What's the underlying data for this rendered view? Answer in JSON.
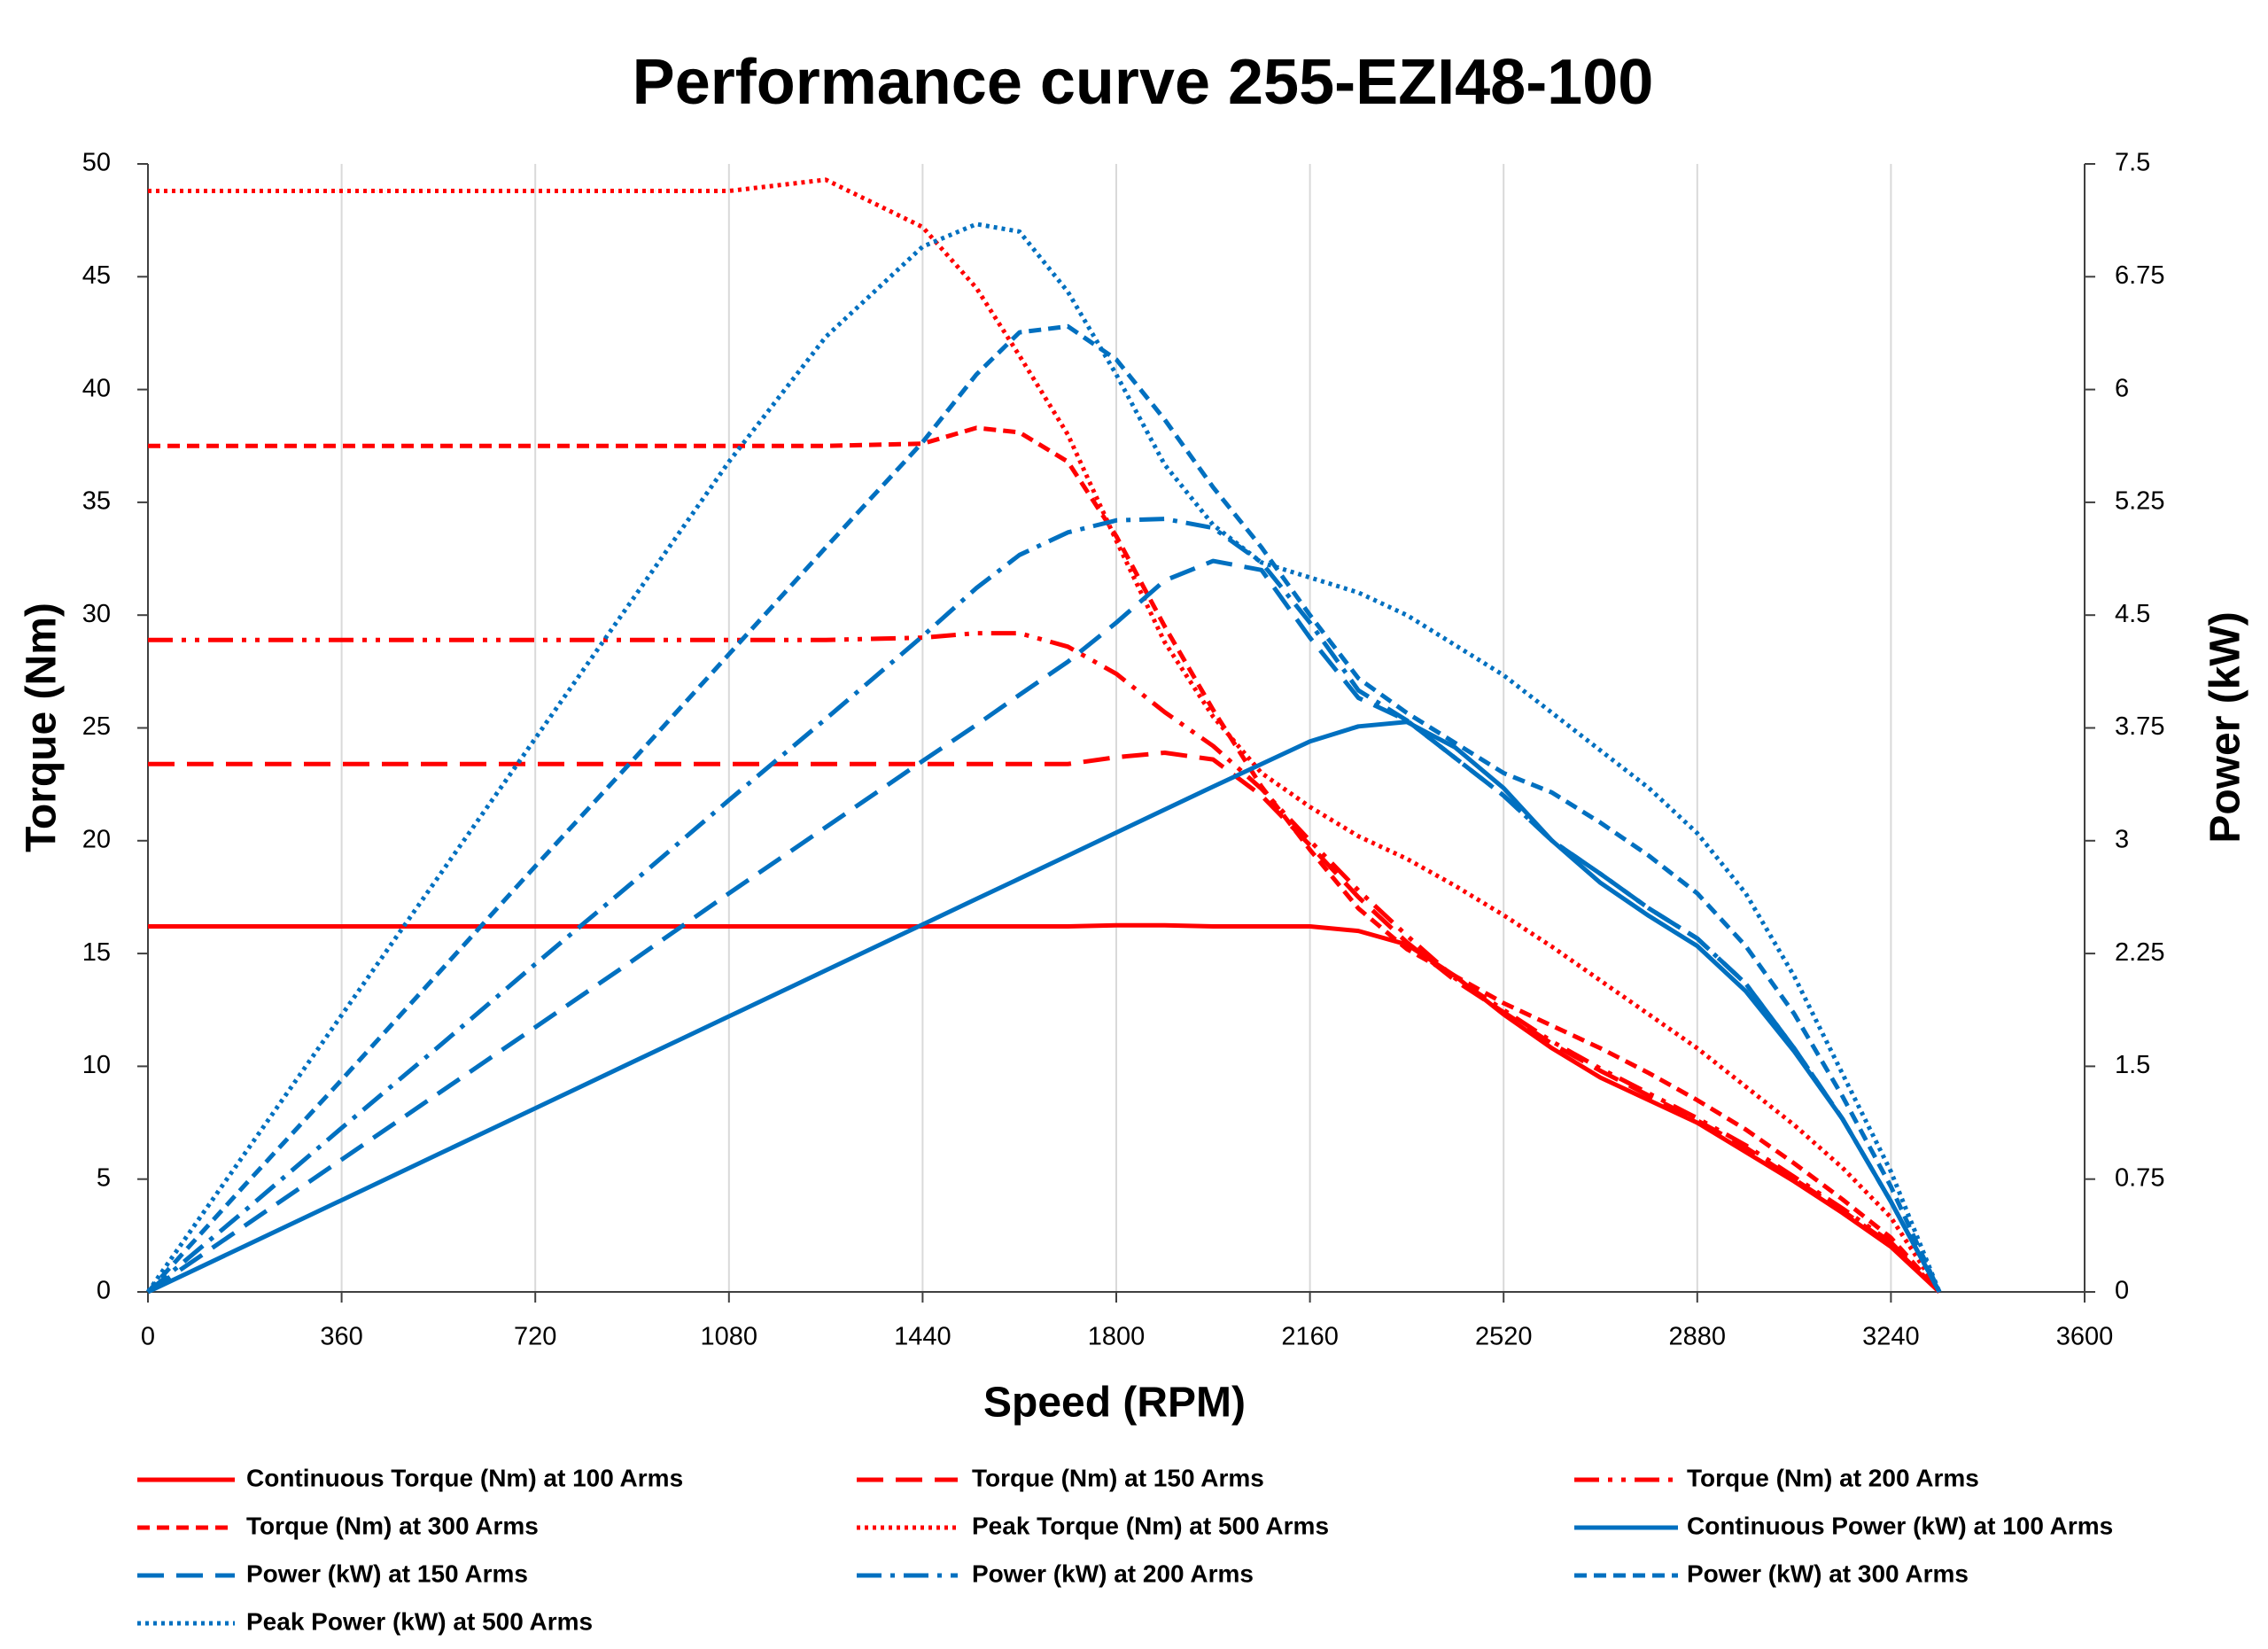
{
  "chart_data": {
    "type": "line",
    "title": "Performance curve 255-EZI48-100",
    "x_label": "Speed (RPM)",
    "y_label": "Torque (Nm)",
    "y2_label": "Power (kW)",
    "xlim": [
      0,
      3600
    ],
    "xticks": [
      0,
      360,
      720,
      1080,
      1440,
      1800,
      2160,
      2520,
      2880,
      3240,
      3600
    ],
    "ylim": [
      0,
      50
    ],
    "yticks": [
      0,
      5,
      10,
      15,
      20,
      25,
      30,
      35,
      40,
      45,
      50
    ],
    "y2lim": [
      0,
      7.5
    ],
    "y2ticks": [
      0,
      0.75,
      1.5,
      2.25,
      3,
      3.75,
      4.5,
      5.25,
      6,
      6.75,
      7.5
    ],
    "grid": "x",
    "legend": "bottom",
    "x": [
      0,
      180,
      360,
      540,
      720,
      900,
      1080,
      1260,
      1440,
      1540,
      1620,
      1710,
      1800,
      1890,
      1980,
      2070,
      2160,
      2250,
      2340,
      2430,
      2520,
      2610,
      2700,
      2790,
      2880,
      2970,
      3060,
      3150,
      3240,
      3330
    ],
    "series": [
      {
        "name": "Continuous Torque (Nm) at 100 Arms",
        "color": "#ff0000",
        "dash": "solid",
        "values": [
          16.2,
          16.2,
          16.2,
          16.2,
          16.2,
          16.2,
          16.2,
          16.2,
          16.2,
          16.2,
          16.2,
          16.2,
          16.25,
          16.25,
          16.2,
          16.2,
          16.2,
          16.0,
          15.4,
          14.0,
          12.3,
          10.8,
          9.5,
          8.5,
          7.5,
          6.2,
          4.9,
          3.5,
          2.0,
          0
        ]
      },
      {
        "name": "Torque (Nm) at 150 Arms",
        "color": "#ff0000",
        "dash": "long-dash",
        "values": [
          23.4,
          23.4,
          23.4,
          23.4,
          23.4,
          23.4,
          23.4,
          23.4,
          23.4,
          23.4,
          23.4,
          23.4,
          23.7,
          23.9,
          23.6,
          22.0,
          19.8,
          17.5,
          15.5,
          13.8,
          12.4,
          11.0,
          9.8,
          8.7,
          7.6,
          6.4,
          5.0,
          3.6,
          2.1,
          0
        ]
      },
      {
        "name": "Torque (Nm) at 200 Arms",
        "color": "#ff0000",
        "dash": "dash-dot-dot",
        "values": [
          28.9,
          28.9,
          28.9,
          28.9,
          28.9,
          28.9,
          28.9,
          28.9,
          29.0,
          29.2,
          29.2,
          28.6,
          27.4,
          25.7,
          24.2,
          22.3,
          20.0,
          17.8,
          15.8,
          13.9,
          12.5,
          11.1,
          9.9,
          8.8,
          7.7,
          6.5,
          5.1,
          3.7,
          2.2,
          0
        ]
      },
      {
        "name": "Torque (Nm) at 300 Arms",
        "color": "#ff0000",
        "dash": "dash",
        "values": [
          37.5,
          37.5,
          37.5,
          37.5,
          37.5,
          37.5,
          37.5,
          37.5,
          37.6,
          38.3,
          38.1,
          36.8,
          33.5,
          29.5,
          25.8,
          22.4,
          19.6,
          17.0,
          15.2,
          14.0,
          12.8,
          11.8,
          10.8,
          9.7,
          8.5,
          7.2,
          5.7,
          4.1,
          2.4,
          0
        ]
      },
      {
        "name": "Peak Torque (Nm) at 500 Arms",
        "color": "#ff0000",
        "dash": "dot",
        "values": [
          48.8,
          48.8,
          48.8,
          48.8,
          48.8,
          48.8,
          48.8,
          49.3,
          47.2,
          44.5,
          41.5,
          38.0,
          33.3,
          28.8,
          25.5,
          23.0,
          21.5,
          20.2,
          19.2,
          18.0,
          16.7,
          15.3,
          13.8,
          12.3,
          10.8,
          9.1,
          7.4,
          5.5,
          3.3,
          0
        ]
      },
      {
        "name": "Continuous Power (kW) at 100 Arms",
        "color": "#0070c0",
        "dash": "solid",
        "axis": "y2",
        "values": [
          0,
          0.305,
          0.61,
          0.916,
          1.221,
          1.527,
          1.832,
          2.138,
          2.443,
          2.613,
          2.748,
          2.901,
          3.054,
          3.207,
          3.36,
          3.51,
          3.66,
          3.76,
          3.79,
          3.62,
          3.35,
          3.0,
          2.72,
          2.5,
          2.3,
          2.0,
          1.6,
          1.15,
          0.6,
          0
        ]
      },
      {
        "name": "Power (kW) at 150 Arms",
        "color": "#0070c0",
        "dash": "long-dash",
        "axis": "y2",
        "values": [
          0,
          0.44,
          0.88,
          1.32,
          1.76,
          2.2,
          2.65,
          3.09,
          3.53,
          3.77,
          3.97,
          4.19,
          4.45,
          4.73,
          4.86,
          4.8,
          4.35,
          3.95,
          3.8,
          3.55,
          3.3,
          3.0,
          2.78,
          2.55,
          2.35,
          2.05,
          1.62,
          1.15,
          0.6,
          0
        ]
      },
      {
        "name": "Power (kW) at 200 Arms",
        "color": "#0070c0",
        "dash": "dash-dot",
        "axis": "y2",
        "values": [
          0,
          0.54,
          1.09,
          1.63,
          2.18,
          2.72,
          3.27,
          3.81,
          4.36,
          4.68,
          4.9,
          5.05,
          5.13,
          5.14,
          5.08,
          4.85,
          4.45,
          4.0,
          3.8,
          3.55,
          3.3,
          3.0,
          2.78,
          2.55,
          2.35,
          2.05,
          1.62,
          1.15,
          0.6,
          0
        ]
      },
      {
        "name": "Power (kW) at 300 Arms",
        "color": "#0070c0",
        "dash": "dash",
        "axis": "y2",
        "values": [
          0,
          0.71,
          1.41,
          2.12,
          2.83,
          3.53,
          4.24,
          4.95,
          5.65,
          6.1,
          6.38,
          6.42,
          6.2,
          5.8,
          5.35,
          4.95,
          4.5,
          4.08,
          3.85,
          3.65,
          3.45,
          3.32,
          3.12,
          2.9,
          2.65,
          2.3,
          1.85,
          1.3,
          0.7,
          0
        ]
      },
      {
        "name": "Peak Power (kW) at 500 Arms",
        "color": "#0070c0",
        "dash": "dot",
        "axis": "y2",
        "values": [
          0,
          0.92,
          1.84,
          2.76,
          3.68,
          4.6,
          5.52,
          6.35,
          6.95,
          7.1,
          7.05,
          6.65,
          6.1,
          5.5,
          5.1,
          4.85,
          4.75,
          4.65,
          4.5,
          4.3,
          4.1,
          3.85,
          3.6,
          3.35,
          3.05,
          2.65,
          2.1,
          1.45,
          0.8,
          0
        ]
      }
    ]
  }
}
